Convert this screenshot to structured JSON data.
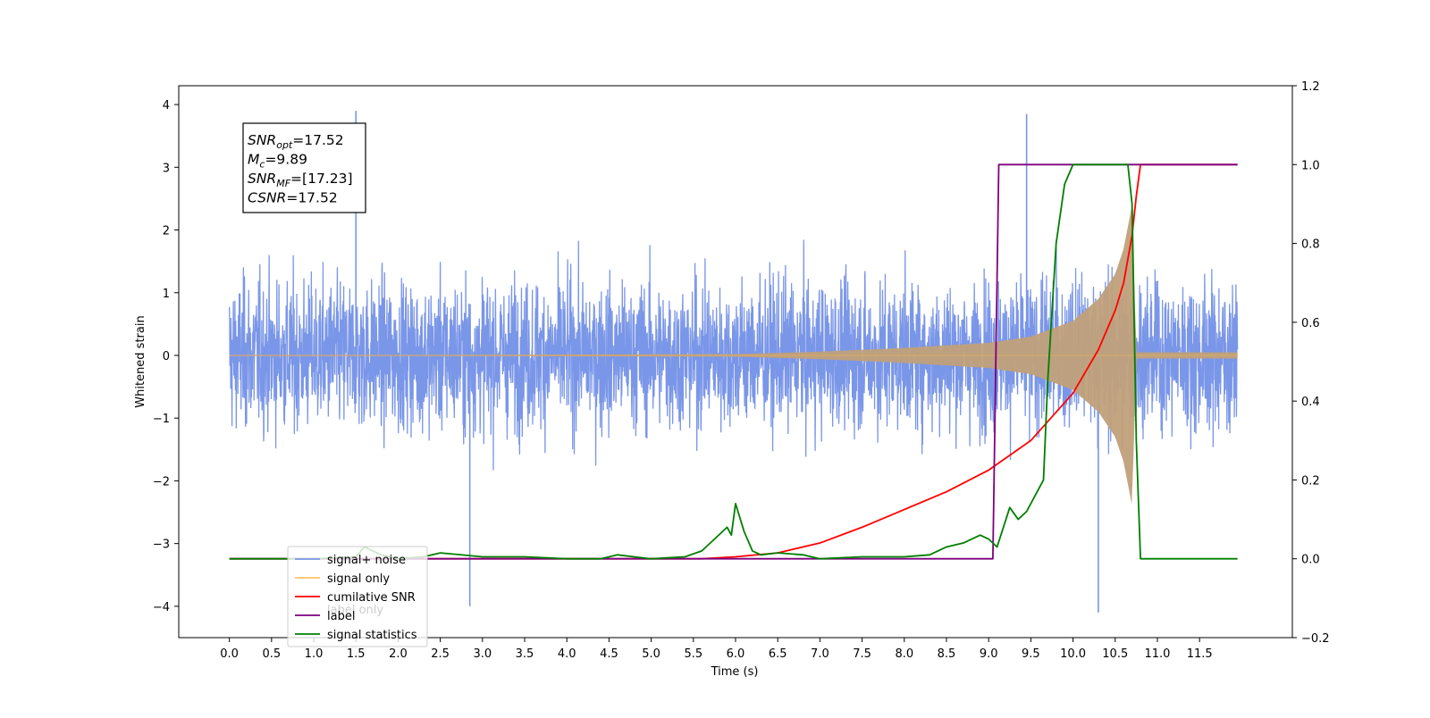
{
  "chart_data": {
    "type": "line",
    "xlabel": "Time (s)",
    "ylabel_left": "Whitened strain",
    "ylabel_right": "",
    "xlim": [
      -0.6,
      12.6
    ],
    "ylim_left": [
      -4.5,
      4.3
    ],
    "ylim_right": [
      -0.2,
      1.2
    ],
    "x_ticks": [
      "0.0",
      "0.5",
      "1.0",
      "1.5",
      "2.0",
      "2.5",
      "3.0",
      "3.5",
      "4.0",
      "4.5",
      "5.0",
      "5.5",
      "6.0",
      "6.5",
      "7.0",
      "7.5",
      "8.0",
      "8.5",
      "9.0",
      "9.5",
      "10.0",
      "10.5",
      "11.0",
      "11.5"
    ],
    "y_ticks_left": [
      "4",
      "3",
      "2",
      "1",
      "0",
      "−1",
      "−2",
      "−3",
      "−4"
    ],
    "y_ticks_right": [
      "1.2",
      "1.0",
      "0.8",
      "0.6",
      "0.4",
      "0.2",
      "0.0",
      "−0.2"
    ],
    "grid": false,
    "legend_position": "lower-left",
    "series": [
      {
        "name": "signal+ noise",
        "axis": "left",
        "color": "#7a96e8",
        "description_range": [
          -4.0,
          3.9
        ],
        "spikes": [
          [
            1.5,
            3.9
          ],
          [
            9.45,
            3.85
          ],
          [
            2.85,
            -4.0
          ],
          [
            10.3,
            -4.1
          ]
        ]
      },
      {
        "name": "signal only",
        "axis": "left",
        "color": "#ffc266",
        "envelope": [
          [
            0.0,
            0.0
          ],
          [
            6.0,
            0.02
          ],
          [
            7.0,
            0.06
          ],
          [
            8.0,
            0.12
          ],
          [
            9.0,
            0.2
          ],
          [
            9.5,
            0.3
          ],
          [
            10.0,
            0.55
          ],
          [
            10.3,
            0.9
          ],
          [
            10.5,
            1.3
          ],
          [
            10.6,
            1.7
          ],
          [
            10.7,
            2.4
          ],
          [
            10.75,
            0.05
          ],
          [
            12.0,
            0.05
          ]
        ]
      },
      {
        "name": "cumilative SNR",
        "axis": "right",
        "color": "#ff0000",
        "x": [
          0.0,
          5.6,
          6.0,
          6.5,
          7.0,
          7.5,
          8.0,
          8.5,
          9.0,
          9.5,
          10.0,
          10.3,
          10.5,
          10.6,
          10.7,
          10.75,
          10.8,
          11.95
        ],
        "y": [
          0.0,
          0.0,
          0.005,
          0.015,
          0.04,
          0.08,
          0.125,
          0.17,
          0.225,
          0.3,
          0.42,
          0.53,
          0.63,
          0.7,
          0.82,
          0.92,
          1.0,
          1.0
        ]
      },
      {
        "name": "label",
        "axis": "right",
        "color": "#7f007f",
        "x": [
          0.0,
          9.05,
          9.12,
          10.8,
          11.95
        ],
        "y": [
          0.0,
          0.0,
          1.0,
          1.0,
          1.0
        ]
      },
      {
        "name": "signal statistics",
        "axis": "right",
        "color": "#007f00",
        "x": [
          0.0,
          1.0,
          1.5,
          1.6,
          1.8,
          2.0,
          2.3,
          2.5,
          3.0,
          3.5,
          4.0,
          4.4,
          4.6,
          5.0,
          5.4,
          5.6,
          5.8,
          5.9,
          5.95,
          6.0,
          6.1,
          6.2,
          6.3,
          6.5,
          6.8,
          7.0,
          7.5,
          8.0,
          8.3,
          8.5,
          8.7,
          8.9,
          9.0,
          9.1,
          9.25,
          9.35,
          9.45,
          9.55,
          9.65,
          9.7,
          9.8,
          9.9,
          10.0,
          10.2,
          10.5,
          10.65,
          10.7,
          10.75,
          10.8,
          11.95
        ],
        "y": [
          0.0,
          0.0,
          0.005,
          0.03,
          0.01,
          0.0,
          0.005,
          0.015,
          0.005,
          0.005,
          0.0,
          0.0,
          0.01,
          0.0,
          0.005,
          0.02,
          0.06,
          0.08,
          0.06,
          0.14,
          0.07,
          0.02,
          0.01,
          0.015,
          0.01,
          0.0,
          0.005,
          0.005,
          0.01,
          0.03,
          0.04,
          0.06,
          0.05,
          0.03,
          0.13,
          0.1,
          0.12,
          0.16,
          0.2,
          0.45,
          0.8,
          0.95,
          1.0,
          1.0,
          1.0,
          1.0,
          0.9,
          0.3,
          0.0,
          0.0
        ]
      }
    ],
    "legend_entries": [
      {
        "label": "signal+ noise",
        "color": "#7a96e8"
      },
      {
        "label": "signal only",
        "color": "#ffc266"
      },
      {
        "label": "cumilative SNR",
        "color": "#ff0000"
      },
      {
        "label": "label",
        "color": "#7f007f"
      },
      {
        "label": "signal statistics",
        "color": "#007f00"
      }
    ],
    "ghost_legend_text": [
      "label only"
    ],
    "annotation": {
      "lines": [
        {
          "base": "SNR",
          "sub": "opt",
          "value": "=17.52"
        },
        {
          "base": "M",
          "sub": "c",
          "value": "=9.89"
        },
        {
          "base": "SNR",
          "sub": "MF",
          "value": "=[17.23]"
        },
        {
          "base": "CSNR",
          "sub": "",
          "value": "=17.52"
        }
      ]
    }
  }
}
